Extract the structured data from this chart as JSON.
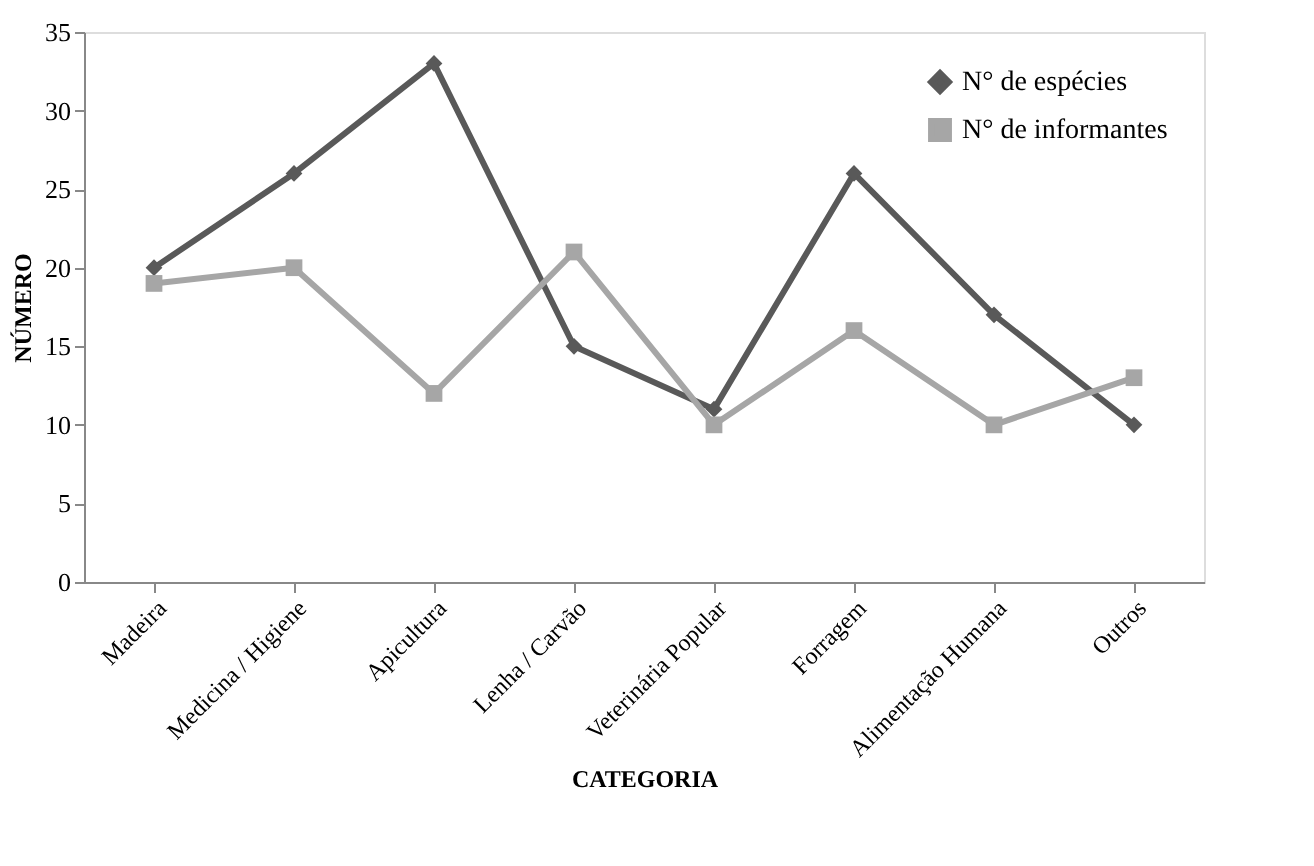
{
  "chart_data": {
    "type": "line",
    "xlabel": "CATEGORIA",
    "ylabel": "NÚMERO",
    "categories": [
      "Madeira",
      "Medicina / Higiene",
      "Apicultura",
      "Lenha / Carvão",
      "Veterinária Popular",
      "Forragem",
      "Alimentação Humana",
      "Outros"
    ],
    "series": [
      {
        "name": "N° de espécies",
        "color": "#595959",
        "marker": "diamond",
        "values": [
          20,
          26,
          33,
          15,
          11,
          26,
          17,
          10
        ]
      },
      {
        "name": "N° de informantes",
        "color": "#a6a6a6",
        "marker": "square",
        "values": [
          19,
          20,
          12,
          21,
          10,
          16,
          10,
          13
        ]
      }
    ],
    "ylim": [
      0,
      35
    ],
    "yticks": [
      0,
      5,
      10,
      15,
      20,
      25,
      30,
      35
    ],
    "grid": false,
    "legend": "top right",
    "line_style": "solid"
  }
}
